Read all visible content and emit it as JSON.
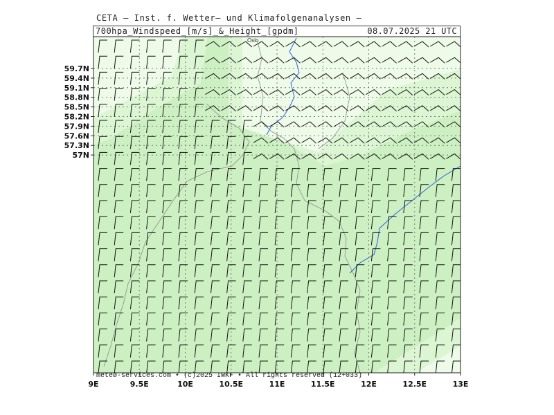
{
  "header": {
    "top_line": "CETA — Inst. f. Wetter— und Klimafolgenanalysen —",
    "title_left": "700hpa_Windspeed_[m/s]_&_Height_[gpdm]",
    "title_right": "08.07.2025 21 UTC"
  },
  "map": {
    "longitude_labels": [
      "9E",
      "9.5E",
      "10E",
      "10.5E",
      "11E",
      "11.5E",
      "12E",
      "12.5E",
      "13E"
    ],
    "latitude_labels": [
      "59.7N",
      "59.4N",
      "59.1N",
      "58.8N",
      "58.5N",
      "58.2N",
      "57.9N",
      "57.6N",
      "57.3N",
      "57N"
    ],
    "lon_range": [
      9,
      13
    ],
    "lat_range": [
      56.85,
      59.95
    ],
    "city_label": "Oslo",
    "credit": "meteø-services.com • (c)2025 IWKF • All rights reserved (12+033)",
    "colors": {
      "shade_light": "#eefbe9",
      "shade_mid": "#dcf6d3",
      "shade_dark": "#cdf0c2",
      "river": "#2a5fe0",
      "barb": "#111111"
    }
  }
}
